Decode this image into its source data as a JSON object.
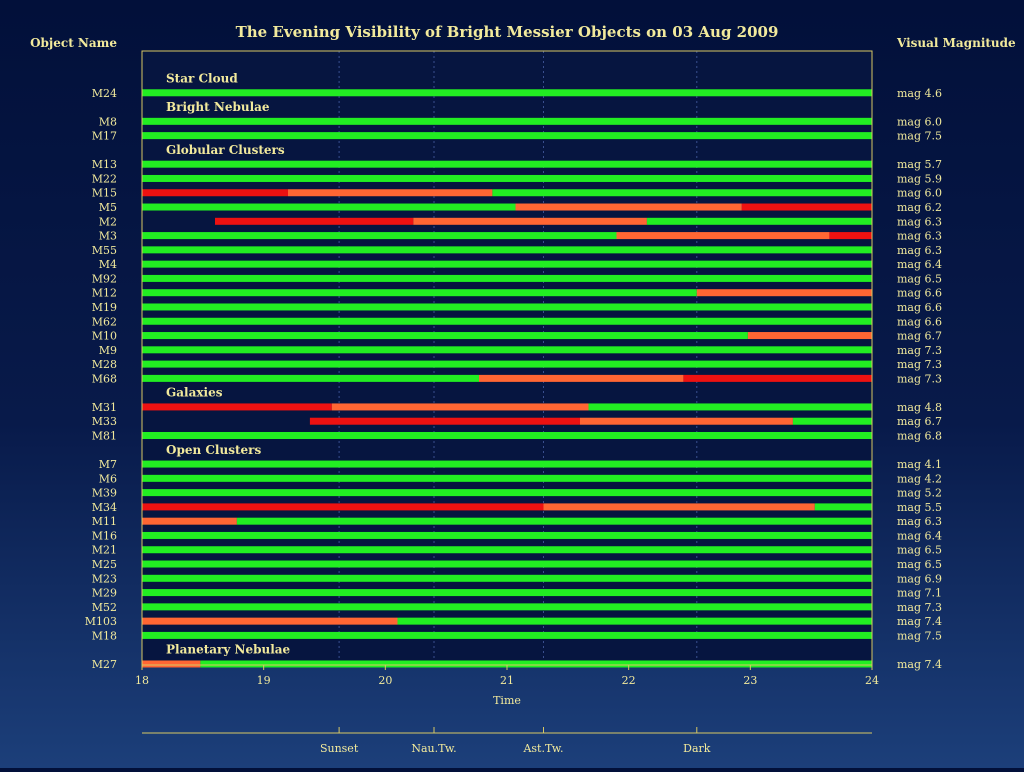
{
  "chart_data": {
    "type": "gantt",
    "title": "The Evening Visibility of Bright Messier Objects on 03 Aug 2009",
    "left_header": "Object Name",
    "right_header": "Visual Magnitude",
    "xlabel": "Time",
    "xlim": [
      18,
      24
    ],
    "x_ticks": [
      18,
      19,
      20,
      21,
      22,
      23,
      24
    ],
    "twilight_markers": [
      {
        "label": "Sunset",
        "time": 19.62
      },
      {
        "label": "Nau.Tw.",
        "time": 20.4
      },
      {
        "label": "Ast.Tw.",
        "time": 21.3
      },
      {
        "label": "Dark",
        "time": 22.56
      }
    ],
    "colors": {
      "visible": "#22ee22",
      "low": "#ff6633",
      "very_low": "#ee1111",
      "background": "#061540",
      "axis": "#d8c864",
      "text": "#f2ea9c"
    },
    "legend_meaning": [
      "visible",
      "low",
      "very_low"
    ],
    "groups": [
      {
        "name": "Star Cloud",
        "objects": [
          {
            "name": "M24",
            "mag": "mag 4.6",
            "segments": [
              [
                18,
                24,
                "visible"
              ]
            ]
          }
        ]
      },
      {
        "name": "Bright Nebulae",
        "objects": [
          {
            "name": "M8",
            "mag": "mag 6.0",
            "segments": [
              [
                18,
                24,
                "visible"
              ]
            ]
          },
          {
            "name": "M17",
            "mag": "mag 7.5",
            "segments": [
              [
                18,
                24,
                "visible"
              ]
            ]
          }
        ]
      },
      {
        "name": "Globular Clusters",
        "objects": [
          {
            "name": "M13",
            "mag": "mag 5.7",
            "segments": [
              [
                18,
                24,
                "visible"
              ]
            ]
          },
          {
            "name": "M22",
            "mag": "mag 5.9",
            "segments": [
              [
                18,
                24,
                "visible"
              ]
            ]
          },
          {
            "name": "M15",
            "mag": "mag 6.0",
            "segments": [
              [
                18,
                19.2,
                "very_low"
              ],
              [
                19.2,
                20.88,
                "low"
              ],
              [
                20.88,
                24,
                "visible"
              ]
            ]
          },
          {
            "name": "M5",
            "mag": "mag 6.2",
            "segments": [
              [
                18,
                21.07,
                "visible"
              ],
              [
                21.07,
                22.93,
                "low"
              ],
              [
                22.93,
                24,
                "very_low"
              ]
            ]
          },
          {
            "name": "M2",
            "mag": "mag 6.3",
            "segments": [
              [
                18.6,
                20.23,
                "very_low"
              ],
              [
                20.23,
                22.15,
                "low"
              ],
              [
                22.15,
                24,
                "visible"
              ]
            ]
          },
          {
            "name": "M3",
            "mag": "mag 6.3",
            "segments": [
              [
                18,
                21.9,
                "visible"
              ],
              [
                21.9,
                23.65,
                "low"
              ],
              [
                23.65,
                24,
                "very_low"
              ]
            ]
          },
          {
            "name": "M55",
            "mag": "mag 6.3",
            "segments": [
              [
                18,
                24,
                "visible"
              ]
            ]
          },
          {
            "name": "M4",
            "mag": "mag 6.4",
            "segments": [
              [
                18,
                24,
                "visible"
              ]
            ]
          },
          {
            "name": "M92",
            "mag": "mag 6.5",
            "segments": [
              [
                18,
                24,
                "visible"
              ]
            ]
          },
          {
            "name": "M12",
            "mag": "mag 6.6",
            "segments": [
              [
                18,
                22.56,
                "visible"
              ],
              [
                22.56,
                24,
                "low"
              ]
            ]
          },
          {
            "name": "M19",
            "mag": "mag 6.6",
            "segments": [
              [
                18,
                24,
                "visible"
              ]
            ]
          },
          {
            "name": "M62",
            "mag": "mag 6.6",
            "segments": [
              [
                18,
                24,
                "visible"
              ]
            ]
          },
          {
            "name": "M10",
            "mag": "mag 6.7",
            "segments": [
              [
                18,
                22.98,
                "visible"
              ],
              [
                22.98,
                24,
                "low"
              ]
            ]
          },
          {
            "name": "M9",
            "mag": "mag 7.3",
            "segments": [
              [
                18,
                24,
                "visible"
              ]
            ]
          },
          {
            "name": "M28",
            "mag": "mag 7.3",
            "segments": [
              [
                18,
                24,
                "visible"
              ]
            ]
          },
          {
            "name": "M68",
            "mag": "mag 7.3",
            "segments": [
              [
                18,
                20.77,
                "visible"
              ],
              [
                20.77,
                22.45,
                "low"
              ],
              [
                22.45,
                24,
                "very_low"
              ]
            ]
          }
        ]
      },
      {
        "name": "Galaxies",
        "objects": [
          {
            "name": "M31",
            "mag": "mag 4.8",
            "segments": [
              [
                18,
                19.56,
                "very_low"
              ],
              [
                19.56,
                21.67,
                "low"
              ],
              [
                21.67,
                24,
                "visible"
              ]
            ]
          },
          {
            "name": "M33",
            "mag": "mag 6.7",
            "segments": [
              [
                19.38,
                21.6,
                "very_low"
              ],
              [
                21.6,
                23.35,
                "low"
              ],
              [
                23.35,
                24,
                "visible"
              ]
            ]
          },
          {
            "name": "M81",
            "mag": "mag 6.8",
            "segments": [
              [
                18,
                24,
                "visible"
              ]
            ]
          }
        ]
      },
      {
        "name": "Open Clusters",
        "objects": [
          {
            "name": "M7",
            "mag": "mag 4.1",
            "segments": [
              [
                18,
                24,
                "visible"
              ]
            ]
          },
          {
            "name": "M6",
            "mag": "mag 4.2",
            "segments": [
              [
                18,
                24,
                "visible"
              ]
            ]
          },
          {
            "name": "M39",
            "mag": "mag 5.2",
            "segments": [
              [
                18,
                24,
                "visible"
              ]
            ]
          },
          {
            "name": "M34",
            "mag": "mag 5.5",
            "segments": [
              [
                18,
                21.3,
                "very_low"
              ],
              [
                21.3,
                23.53,
                "low"
              ],
              [
                23.53,
                24,
                "visible"
              ]
            ]
          },
          {
            "name": "M11",
            "mag": "mag 6.3",
            "segments": [
              [
                18,
                18.78,
                "low"
              ],
              [
                18.78,
                24,
                "visible"
              ]
            ]
          },
          {
            "name": "M16",
            "mag": "mag 6.4",
            "segments": [
              [
                18,
                24,
                "visible"
              ]
            ]
          },
          {
            "name": "M21",
            "mag": "mag 6.5",
            "segments": [
              [
                18,
                24,
                "visible"
              ]
            ]
          },
          {
            "name": "M25",
            "mag": "mag 6.5",
            "segments": [
              [
                18,
                24,
                "visible"
              ]
            ]
          },
          {
            "name": "M23",
            "mag": "mag 6.9",
            "segments": [
              [
                18,
                24,
                "visible"
              ]
            ]
          },
          {
            "name": "M29",
            "mag": "mag 7.1",
            "segments": [
              [
                18,
                24,
                "visible"
              ]
            ]
          },
          {
            "name": "M52",
            "mag": "mag 7.3",
            "segments": [
              [
                18,
                24,
                "visible"
              ]
            ]
          },
          {
            "name": "M103",
            "mag": "mag 7.4",
            "segments": [
              [
                18,
                20.1,
                "low"
              ],
              [
                20.1,
                24,
                "visible"
              ]
            ]
          },
          {
            "name": "M18",
            "mag": "mag 7.5",
            "segments": [
              [
                18,
                24,
                "visible"
              ]
            ]
          }
        ]
      },
      {
        "name": "Planetary Nebulae",
        "objects": [
          {
            "name": "M27",
            "mag": "mag 7.4",
            "segments": [
              [
                18,
                18.48,
                "low"
              ],
              [
                18.48,
                24,
                "visible"
              ]
            ]
          }
        ]
      }
    ]
  }
}
